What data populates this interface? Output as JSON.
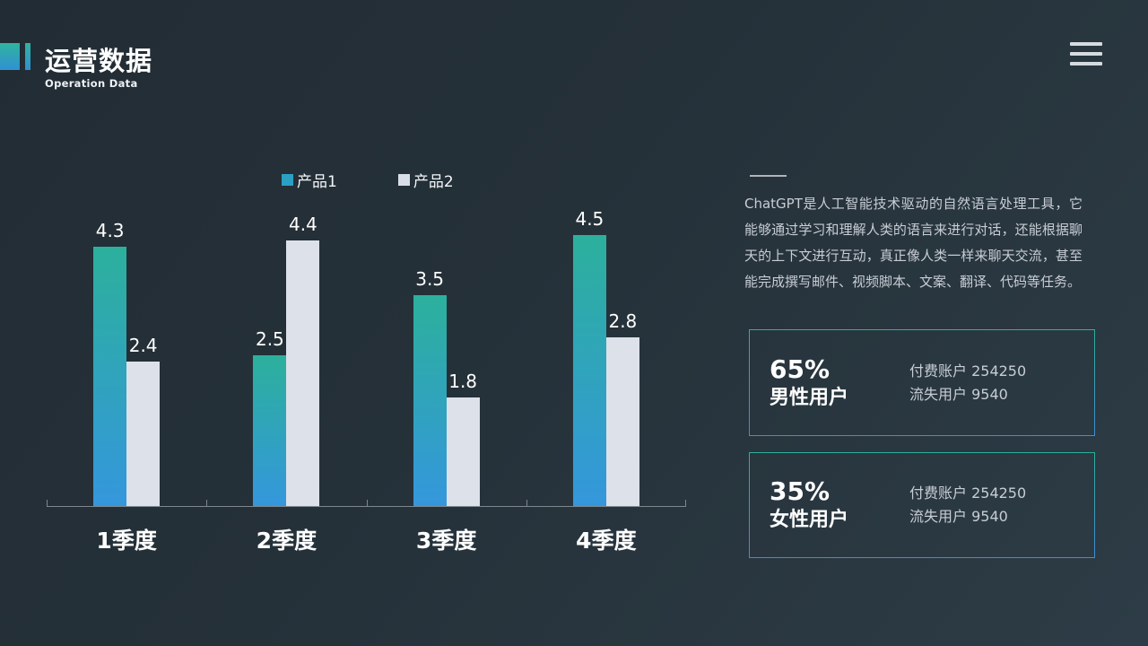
{
  "header": {
    "title": "运营数据",
    "subtitle": "Operation Data"
  },
  "menu": {
    "icon": "hamburger-menu-icon"
  },
  "chart_data": {
    "type": "bar",
    "title": "",
    "xlabel": "",
    "ylabel": "",
    "categories": [
      "1季度",
      "2季度",
      "3季度",
      "4季度"
    ],
    "series": [
      {
        "name": "产品1",
        "values": [
          4.3,
          2.5,
          3.5,
          4.5
        ],
        "color_top": "#2cb09c",
        "color_bottom": "#3497dc",
        "legend_swatch": "#2ba0c5"
      },
      {
        "name": "产品2",
        "values": [
          2.4,
          4.4,
          1.8,
          2.8
        ],
        "color": "#dde1e9",
        "legend_swatch": "#d9dde6"
      }
    ],
    "value_labels": true,
    "ylim": [
      0,
      5
    ],
    "grid": false,
    "legend_position": "top",
    "axis_color": "#7e868d"
  },
  "description": {
    "text": "ChatGPT是人工智能技术驱动的自然语言处理工具，它能够通过学习和理解人类的语言来进行对话，还能根据聊天的上下文进行互动，真正像人类一样来聊天交流，甚至能完成撰写邮件、视频脚本、文案、翻译、代码等任务。"
  },
  "stats": [
    {
      "percent": "65%",
      "label": "男性用户",
      "lines": [
        "付费账户 254250",
        "流失用户 9540"
      ]
    },
    {
      "percent": "35%",
      "label": "女性用户",
      "lines": [
        "付费账户 254250",
        "流失用户 9540"
      ]
    }
  ],
  "accent_colors": {
    "teal": "#30b49e",
    "blue": "#3090d4"
  }
}
